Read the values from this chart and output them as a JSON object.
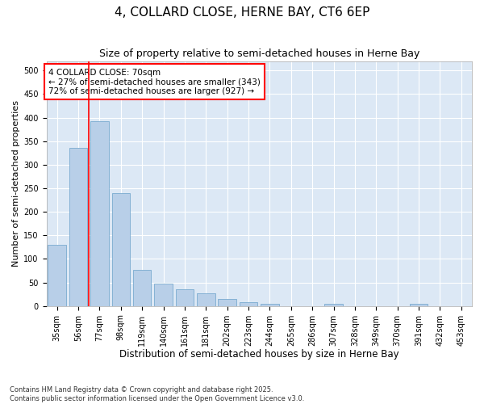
{
  "title": "4, COLLARD CLOSE, HERNE BAY, CT6 6EP",
  "subtitle": "Size of property relative to semi-detached houses in Herne Bay",
  "xlabel": "Distribution of semi-detached houses by size in Herne Bay",
  "ylabel": "Number of semi-detached properties",
  "categories": [
    "35sqm",
    "56sqm",
    "77sqm",
    "98sqm",
    "119sqm",
    "140sqm",
    "161sqm",
    "181sqm",
    "202sqm",
    "223sqm",
    "244sqm",
    "265sqm",
    "286sqm",
    "307sqm",
    "328sqm",
    "349sqm",
    "370sqm",
    "391sqm",
    "432sqm",
    "453sqm"
  ],
  "values": [
    130,
    335,
    393,
    240,
    77,
    48,
    35,
    27,
    15,
    8,
    5,
    0,
    0,
    5,
    0,
    0,
    0,
    5,
    0,
    0
  ],
  "bar_color": "#b8cfe8",
  "bar_edge_color": "#7aaacf",
  "vline_color": "red",
  "vline_x": 1.5,
  "annotation_text": "4 COLLARD CLOSE: 70sqm\n← 27% of semi-detached houses are smaller (343)\n72% of semi-detached houses are larger (927) →",
  "annotation_box_color": "white",
  "annotation_box_edge": "red",
  "background_color": "#dce8f5",
  "ylim": [
    0,
    520
  ],
  "yticks": [
    0,
    50,
    100,
    150,
    200,
    250,
    300,
    350,
    400,
    450,
    500
  ],
  "footer": "Contains HM Land Registry data © Crown copyright and database right 2025.\nContains public sector information licensed under the Open Government Licence v3.0.",
  "title_fontsize": 11,
  "subtitle_fontsize": 9,
  "xlabel_fontsize": 8.5,
  "ylabel_fontsize": 8,
  "tick_fontsize": 7,
  "annotation_fontsize": 7.5,
  "footer_fontsize": 6
}
